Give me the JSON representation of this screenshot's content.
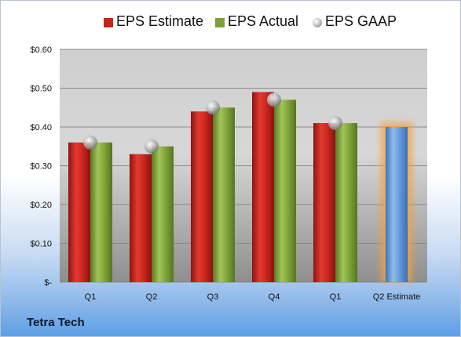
{
  "chart_data": {
    "type": "bar",
    "categories": [
      "Q1",
      "Q2",
      "Q3",
      "Q4",
      "Q1",
      "Q2 Estimate"
    ],
    "series": [
      {
        "name": "EPS Estimate",
        "values": [
          0.36,
          0.33,
          0.44,
          0.49,
          0.41,
          null
        ],
        "color": "#c8221c"
      },
      {
        "name": "EPS Actual",
        "values": [
          0.36,
          0.35,
          0.45,
          0.47,
          0.41,
          null
        ],
        "color": "#7fa038"
      },
      {
        "name": "EPS GAAP",
        "values": [
          0.36,
          0.35,
          0.45,
          0.47,
          0.41,
          null
        ],
        "color": "#a6a6a6",
        "marker": "sphere"
      }
    ],
    "highlight": {
      "category": "Q2 Estimate",
      "value": 0.4,
      "color": "#5b92d6",
      "glow": "#f5a040"
    },
    "ylim": [
      0,
      0.6
    ],
    "yticks": [
      0,
      0.1,
      0.2,
      0.3,
      0.4,
      0.5,
      0.6
    ],
    "ytick_labels": [
      "$-",
      "$0.10",
      "$0.20",
      "$0.30",
      "$0.40",
      "$0.50",
      "$0.60"
    ],
    "grid": true,
    "legend": "top",
    "xlabel": "",
    "ylabel": ""
  },
  "company": "Tetra Tech"
}
